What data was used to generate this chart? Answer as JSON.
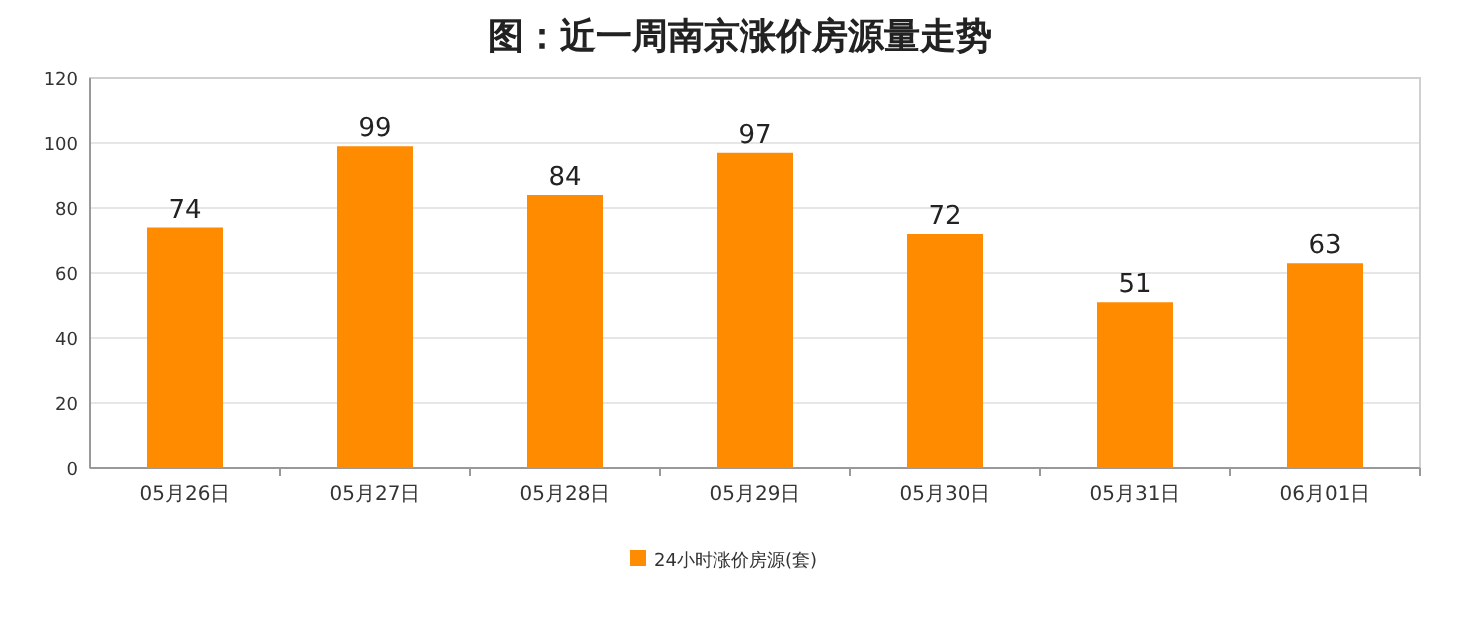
{
  "chart_data": {
    "type": "bar",
    "title": "图：近一周南京涨价房源量走势",
    "categories": [
      "05月26日",
      "05月27日",
      "05月28日",
      "05月29日",
      "05月30日",
      "05月31日",
      "06月01日"
    ],
    "series": [
      {
        "name": "24小时涨价房源(套)",
        "color": "#ff8c00",
        "values": [
          74,
          99,
          84,
          97,
          72,
          51,
          63
        ]
      }
    ],
    "ylim": [
      0,
      120
    ],
    "yticks": [
      0,
      20,
      40,
      60,
      80,
      100,
      120
    ],
    "grid": "y",
    "legend": "bottom",
    "data_labels": true
  }
}
